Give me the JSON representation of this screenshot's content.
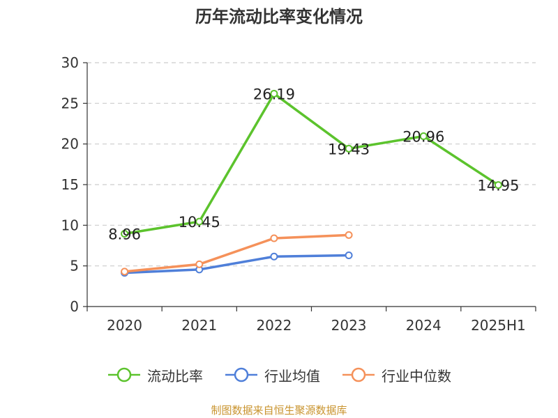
{
  "chart_data": {
    "type": "line",
    "title": "历年流动比率变化情况",
    "categories": [
      "2020",
      "2021",
      "2022",
      "2023",
      "2024",
      "2025H1"
    ],
    "ylim": [
      0,
      30
    ],
    "yticks": [
      0,
      5,
      10,
      15,
      20,
      25,
      30
    ],
    "grid": true,
    "legend_position": "bottom",
    "series": [
      {
        "name": "流动比率",
        "color": "#5cc32d",
        "values": [
          8.96,
          10.45,
          26.19,
          19.43,
          20.96,
          14.95
        ],
        "labels": [
          "8.96",
          "10.45",
          "26.19",
          "19.43",
          "20.96",
          "14.95"
        ]
      },
      {
        "name": "行业均值",
        "color": "#4f7fd9",
        "values": [
          4.15,
          4.55,
          6.15,
          6.3,
          null,
          null
        ]
      },
      {
        "name": "行业中位数",
        "color": "#f5915a",
        "values": [
          4.3,
          5.2,
          8.4,
          8.8,
          null,
          null
        ]
      }
    ]
  },
  "footer": {
    "source": "制图数据来自恒生聚源数据库"
  }
}
